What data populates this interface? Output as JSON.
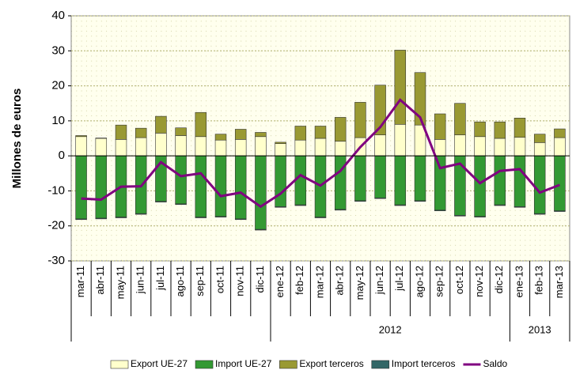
{
  "chart_data": {
    "type": "bar",
    "stacked": true,
    "ylabel": "Millones de euros",
    "categories": [
      "mar-11",
      "abr-11",
      "may-11",
      "jun-11",
      "jul-11",
      "ago-11",
      "sep-11",
      "oct-11",
      "nov-11",
      "dic-11",
      "ene-12",
      "feb-12",
      "mar-12",
      "abr-12",
      "may-12",
      "jun-12",
      "jul-12",
      "ago-12",
      "sep-12",
      "oct-12",
      "nov-12",
      "dic-12",
      "ene-13",
      "feb-13",
      "mar-13"
    ],
    "category_groups": [
      null,
      null,
      null,
      null,
      null,
      null,
      null,
      null,
      null,
      null,
      "2012",
      "2012",
      "2012",
      "2012",
      "2012",
      "2012",
      "2012",
      "2012",
      "2012",
      "2012",
      "2012",
      "2012",
      "2013",
      "2013",
      "2013"
    ],
    "series": [
      {
        "name": "Export UE-27",
        "type": "bar",
        "color": "#ffffcc",
        "values": [
          5.5,
          5,
          4.7,
          5.2,
          6.5,
          5.8,
          5.5,
          4.5,
          4.7,
          5.5,
          3.5,
          4.5,
          5,
          4.2,
          5.2,
          6,
          9,
          8.8,
          4.7,
          6,
          5.5,
          5,
          5.3,
          3.8,
          5.2
        ]
      },
      {
        "name": "Import UE-27",
        "type": "bar",
        "color": "#339933",
        "values": [
          -18,
          -17.8,
          -17.5,
          -16.5,
          -13,
          -13.7,
          -17.5,
          -17.3,
          -18,
          -21,
          -14.5,
          -14,
          -17.5,
          -15.3,
          -12.8,
          -12,
          -14,
          -12.8,
          -15.5,
          -17,
          -17.3,
          -14,
          -14.5,
          -16.5,
          -15.7
        ]
      },
      {
        "name": "Export terceros",
        "type": "bar",
        "color": "#999933",
        "values": [
          0.3,
          0.1,
          4.1,
          2.7,
          4.8,
          2.2,
          6.9,
          1.7,
          2.9,
          1.2,
          0.4,
          4,
          3.5,
          6.8,
          10.1,
          14.2,
          21.2,
          15,
          7.3,
          9,
          4.2,
          4.7,
          5.5,
          2.4,
          2.5
        ]
      },
      {
        "name": "Import terceros",
        "type": "bar",
        "color": "#336666",
        "values": [
          -0.2,
          -0.2,
          -0.2,
          -0.2,
          -0.2,
          -0.2,
          -0.2,
          -0.2,
          -0.2,
          -0.2,
          -0.2,
          -0.2,
          -0.2,
          -0.2,
          -0.2,
          -0.2,
          -0.2,
          -0.2,
          -0.2,
          -0.2,
          -0.2,
          -0.2,
          -0.2,
          -0.2,
          -0.2
        ]
      },
      {
        "name": "Saldo",
        "type": "line",
        "color": "#800080",
        "values": [
          -12.2,
          -12.5,
          -8.8,
          -8.7,
          -1.8,
          -5.8,
          -5,
          -11.5,
          -10.5,
          -14.5,
          -10.8,
          -5.5,
          -8.5,
          -4.3,
          2.5,
          8.2,
          16,
          11,
          -3.5,
          -2.2,
          -7.8,
          -4.3,
          -3.8,
          -10.5,
          -8.3
        ]
      }
    ],
    "ylim": [
      -30,
      40
    ],
    "yticks": [
      -30,
      -20,
      -10,
      0,
      10,
      20,
      30,
      40
    ],
    "grid": true,
    "legend": "bottom"
  }
}
